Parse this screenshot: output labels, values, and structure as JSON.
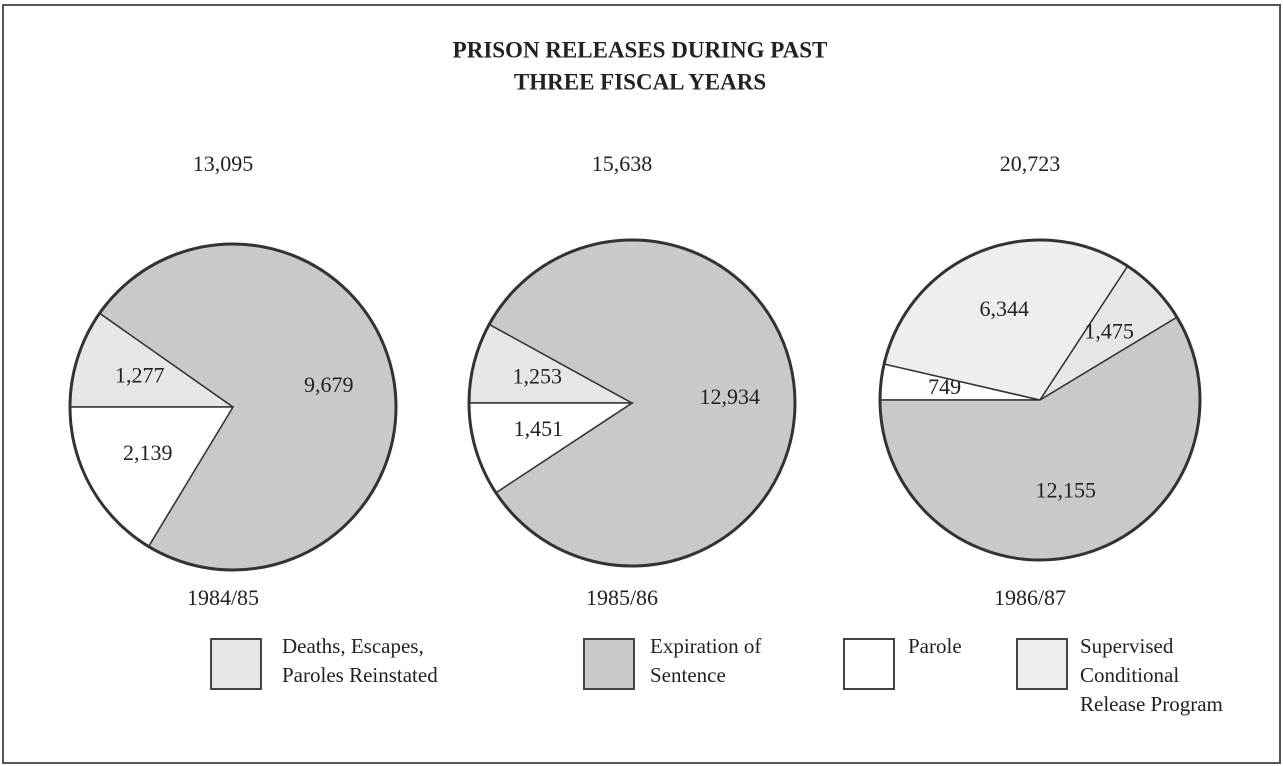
{
  "title": [
    "PRISON RELEASES DURING PAST",
    "THREE FISCAL YEARS"
  ],
  "legend": [
    {
      "name": "Deaths, Escapes, Paroles Reinstated",
      "color": "#e6e6e6"
    },
    {
      "name": "Expiration of Sentence",
      "color": "#c9c9c9"
    },
    {
      "name": "Parole",
      "color": "#ffffff"
    },
    {
      "name": "Supervised Conditional Release Program",
      "color": "#eeeeee"
    }
  ],
  "chart_data": [
    {
      "type": "pie",
      "label": "1984/85",
      "total": 13095,
      "total_label": "13,095",
      "categories": [
        "Deaths, Escapes, Paroles Reinstated",
        "Expiration of Sentence",
        "Parole"
      ],
      "values": [
        1277,
        9679,
        2139
      ],
      "value_labels": [
        "1,277",
        "9,679",
        "2,139"
      ],
      "colors": [
        "#e6e6e6",
        "#c9c9c9",
        "#ffffff"
      ]
    },
    {
      "type": "pie",
      "label": "1985/86",
      "total": 15638,
      "total_label": "15,638",
      "categories": [
        "Deaths, Escapes, Paroles Reinstated",
        "Expiration of Sentence",
        "Parole"
      ],
      "values": [
        1253,
        12934,
        1451
      ],
      "value_labels": [
        "1,253",
        "12,934",
        "1,451"
      ],
      "colors": [
        "#e6e6e6",
        "#c9c9c9",
        "#ffffff"
      ]
    },
    {
      "type": "pie",
      "label": "1986/87",
      "total": 20723,
      "total_label": "20,723",
      "categories": [
        "Parole",
        "Supervised Conditional Release Program",
        "Deaths, Escapes, Paroles Reinstated",
        "Expiration of Sentence"
      ],
      "values": [
        749,
        6344,
        1475,
        12155
      ],
      "value_labels": [
        "749",
        "6,344",
        "1,475",
        "12,155"
      ],
      "colors": [
        "#ffffff",
        "#eeeeee",
        "#e6e6e6",
        "#c9c9c9"
      ]
    }
  ]
}
